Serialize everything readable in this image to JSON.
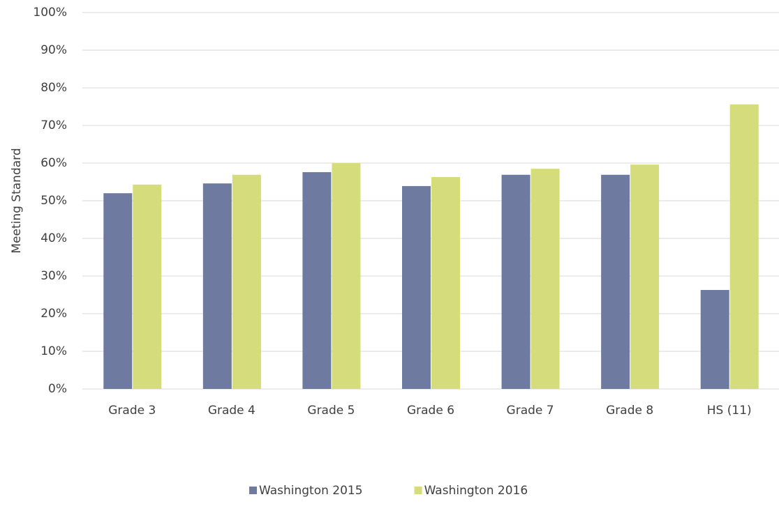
{
  "chart_data": {
    "type": "bar",
    "y_label": "Meeting Standard",
    "categories": [
      "Grade 3",
      "Grade 4",
      "Grade 5",
      "Grade 6",
      "Grade 7",
      "Grade 8",
      "HS (11)"
    ],
    "series": [
      {
        "name": "Washington 2015",
        "color": "#6f7aa1",
        "values": [
          52.0,
          54.6,
          57.6,
          53.9,
          56.9,
          56.9,
          26.3
        ]
      },
      {
        "name": "Washington 2016",
        "color": "#d4dc7c",
        "values": [
          54.3,
          56.9,
          60.0,
          56.3,
          58.5,
          59.6,
          75.6
        ]
      }
    ],
    "ylim": [
      0,
      100
    ],
    "yticks": [
      {
        "value": 0,
        "label": "0%"
      },
      {
        "value": 10,
        "label": "10%"
      },
      {
        "value": 20,
        "label": "20%"
      },
      {
        "value": 30,
        "label": "30%"
      },
      {
        "value": 40,
        "label": "40%"
      },
      {
        "value": 50,
        "label": "50%"
      },
      {
        "value": 60,
        "label": "60%"
      },
      {
        "value": 70,
        "label": "70%"
      },
      {
        "value": 80,
        "label": "80%"
      },
      {
        "value": 90,
        "label": "90%"
      },
      {
        "value": 100,
        "label": "100%"
      }
    ],
    "grid": true,
    "legend": "bottom"
  }
}
